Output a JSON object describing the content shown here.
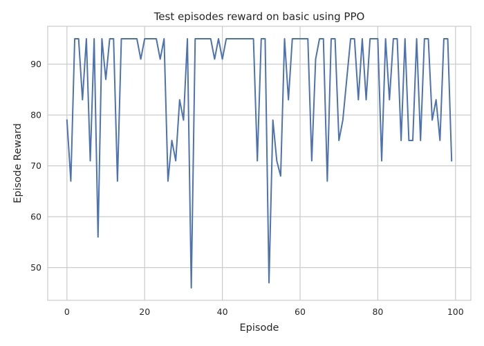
{
  "chart_data": {
    "type": "line",
    "title": "Test episodes reward on basic using PPO",
    "xlabel": "Episode",
    "ylabel": "Episode Reward",
    "xlim": [
      -4.95,
      103.95
    ],
    "ylim": [
      43.55,
      97.45
    ],
    "x_ticks": [
      0,
      20,
      40,
      60,
      80,
      100
    ],
    "y_ticks": [
      50,
      60,
      70,
      80,
      90
    ],
    "grid": true,
    "line_color": "#4c72b0",
    "series": [
      {
        "x": [
          0,
          1,
          2,
          3,
          4,
          5,
          6,
          7,
          8,
          9,
          10,
          11,
          12,
          13,
          14,
          15,
          16,
          17,
          18,
          19,
          20,
          21,
          22,
          23,
          24,
          25,
          26,
          27,
          28,
          29,
          30,
          31,
          32,
          33,
          34,
          35,
          36,
          37,
          38,
          39,
          40,
          41,
          42,
          43,
          44,
          45,
          46,
          47,
          48,
          49,
          50,
          51,
          52,
          53,
          54,
          55,
          56,
          57,
          58,
          59,
          60,
          61,
          62,
          63,
          64,
          65,
          66,
          67,
          68,
          69,
          70,
          71,
          72,
          73,
          74,
          75,
          76,
          77,
          78,
          79,
          80,
          81,
          82,
          83,
          84,
          85,
          86,
          87,
          88,
          89,
          90,
          91,
          92,
          93,
          94,
          95,
          96,
          97,
          98,
          99
        ],
        "values": [
          79,
          67,
          95,
          95,
          83,
          95,
          71,
          95,
          56,
          95,
          87,
          95,
          95,
          67,
          95,
          95,
          95,
          95,
          95,
          91,
          95,
          95,
          95,
          95,
          91,
          95,
          67,
          75,
          71,
          83,
          79,
          95,
          46,
          95,
          95,
          95,
          95,
          95,
          91,
          95,
          91,
          95,
          95,
          95,
          95,
          95,
          95,
          95,
          95,
          71,
          95,
          95,
          47,
          79,
          71,
          68,
          95,
          83,
          95,
          95,
          95,
          95,
          95,
          71,
          91,
          95,
          95,
          67,
          95,
          95,
          75,
          79,
          87,
          95,
          95,
          83,
          95,
          83,
          95,
          95,
          95,
          71,
          95,
          83,
          95,
          95,
          75,
          95,
          75,
          75,
          95,
          75,
          95,
          95,
          79,
          83,
          75,
          95,
          95,
          71
        ]
      }
    ]
  }
}
